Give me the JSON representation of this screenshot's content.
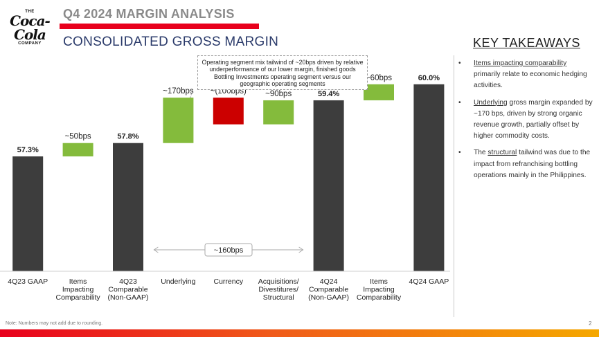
{
  "logo": {
    "the": "THE",
    "script": "Coca-Cola",
    "company": "COMPANY"
  },
  "header": {
    "section_title": "Q4 2024 MARGIN ANALYSIS",
    "slide_title": "CONSOLIDATED GROSS MARGIN"
  },
  "callout": {
    "text": "Operating segment mix tailwind of ~20bps driven by relative underperformance of our lower margin, finished goods Bottling Investments operating segment versus our geographic operating segments"
  },
  "key_takeaways": {
    "title": "KEY TAKEAWAYS",
    "bullet": "•",
    "items": [
      {
        "keyword": "Items impacting comparability",
        "rest": " primarily relate to economic hedging activities."
      },
      {
        "keyword": "Underlying",
        "rest": " gross margin expanded by ~170 bps, driven by strong organic revenue growth, partially offset by higher commodity costs."
      },
      {
        "keyword": "",
        "pre": "The ",
        "keyword2": "structural",
        "rest": " tailwind was due to the impact from refranchising bottling operations mainly in the Philippines."
      }
    ]
  },
  "footer": {
    "note": "Note: Numbers may not add due to rounding.",
    "page_number": "2"
  },
  "colors": {
    "dark_bar": "#3d3d3d",
    "green_bar": "#84bb3c",
    "red_bar": "#cc0000",
    "brand_red": "#e8001c",
    "title_blue": "#2a3a6a"
  },
  "chart_data": {
    "type": "waterfall",
    "unit": "% gross margin",
    "categories": [
      [
        "4Q23 GAAP"
      ],
      [
        "Items",
        "Impacting",
        "Comparability"
      ],
      [
        "4Q23",
        "Comparable",
        "(Non-GAAP)"
      ],
      [
        "Underlying"
      ],
      [
        "Currency"
      ],
      [
        "Acquisitions/",
        "Divestitures/",
        "Structural"
      ],
      [
        "4Q24",
        "Comparable",
        "(Non-GAAP)"
      ],
      [
        "Items",
        "Impacting",
        "Comparability"
      ],
      [
        "4Q24 GAAP"
      ]
    ],
    "bars": [
      {
        "kind": "total",
        "value": 57.3,
        "label": "57.3%"
      },
      {
        "kind": "increase",
        "value": 0.5,
        "label": "~50bps"
      },
      {
        "kind": "total",
        "value": 57.8,
        "label": "57.8%"
      },
      {
        "kind": "increase",
        "value": 1.7,
        "label": "~170bps"
      },
      {
        "kind": "decrease",
        "value": -1.0,
        "label": "~(100bps)"
      },
      {
        "kind": "increase",
        "value": 0.9,
        "label": "~90bps"
      },
      {
        "kind": "total",
        "value": 59.4,
        "label": "59.4%"
      },
      {
        "kind": "increase",
        "value": 0.6,
        "label": "~60bps"
      },
      {
        "kind": "total",
        "value": 60.0,
        "label": "60.0%"
      }
    ],
    "bracket": {
      "from_category": 3,
      "to_category": 5,
      "label": "~160bps"
    }
  }
}
